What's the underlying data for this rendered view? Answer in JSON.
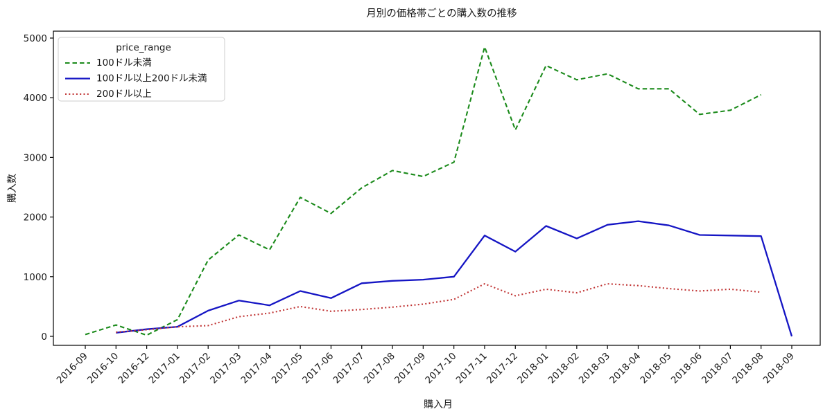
{
  "chart_data": {
    "type": "line",
    "title": "月別の価格帯ごとの購入数の推移",
    "xlabel": "購入月",
    "ylabel": "購入数",
    "ylim": [
      0,
      5000
    ],
    "yticks": [
      0,
      1000,
      2000,
      3000,
      4000,
      5000
    ],
    "grid": false,
    "legend": {
      "title": "price_range",
      "position": "upper-left"
    },
    "categories": [
      "2016-09",
      "2016-10",
      "2016-12",
      "2017-01",
      "2017-02",
      "2017-03",
      "2017-04",
      "2017-05",
      "2017-06",
      "2017-07",
      "2017-08",
      "2017-09",
      "2017-10",
      "2017-11",
      "2017-12",
      "2018-01",
      "2018-02",
      "2018-03",
      "2018-04",
      "2018-05",
      "2018-06",
      "2018-07",
      "2018-08",
      "2018-09"
    ],
    "series": [
      {
        "name": "100ドル未満",
        "style": "dashed",
        "color": "#1a8a1a",
        "values": [
          30,
          190,
          20,
          280,
          1280,
          1700,
          1450,
          2330,
          2060,
          2490,
          2780,
          2680,
          2920,
          4850,
          3460,
          4540,
          4300,
          4400,
          4150,
          4150,
          3720,
          3790,
          4050,
          null
        ]
      },
      {
        "name": "100ドル以上200ドル未満",
        "style": "solid",
        "color": "#1515c4",
        "values": [
          null,
          60,
          120,
          160,
          430,
          600,
          520,
          760,
          640,
          890,
          930,
          950,
          1000,
          1690,
          1420,
          1850,
          1640,
          1870,
          1930,
          1860,
          1700,
          1690,
          1680,
          0
        ]
      },
      {
        "name": "200ドル以上",
        "style": "dotted",
        "color": "#c03333",
        "values": [
          null,
          70,
          110,
          160,
          180,
          330,
          390,
          500,
          420,
          450,
          490,
          540,
          620,
          880,
          680,
          790,
          730,
          880,
          850,
          800,
          760,
          790,
          740,
          null
        ]
      }
    ]
  }
}
